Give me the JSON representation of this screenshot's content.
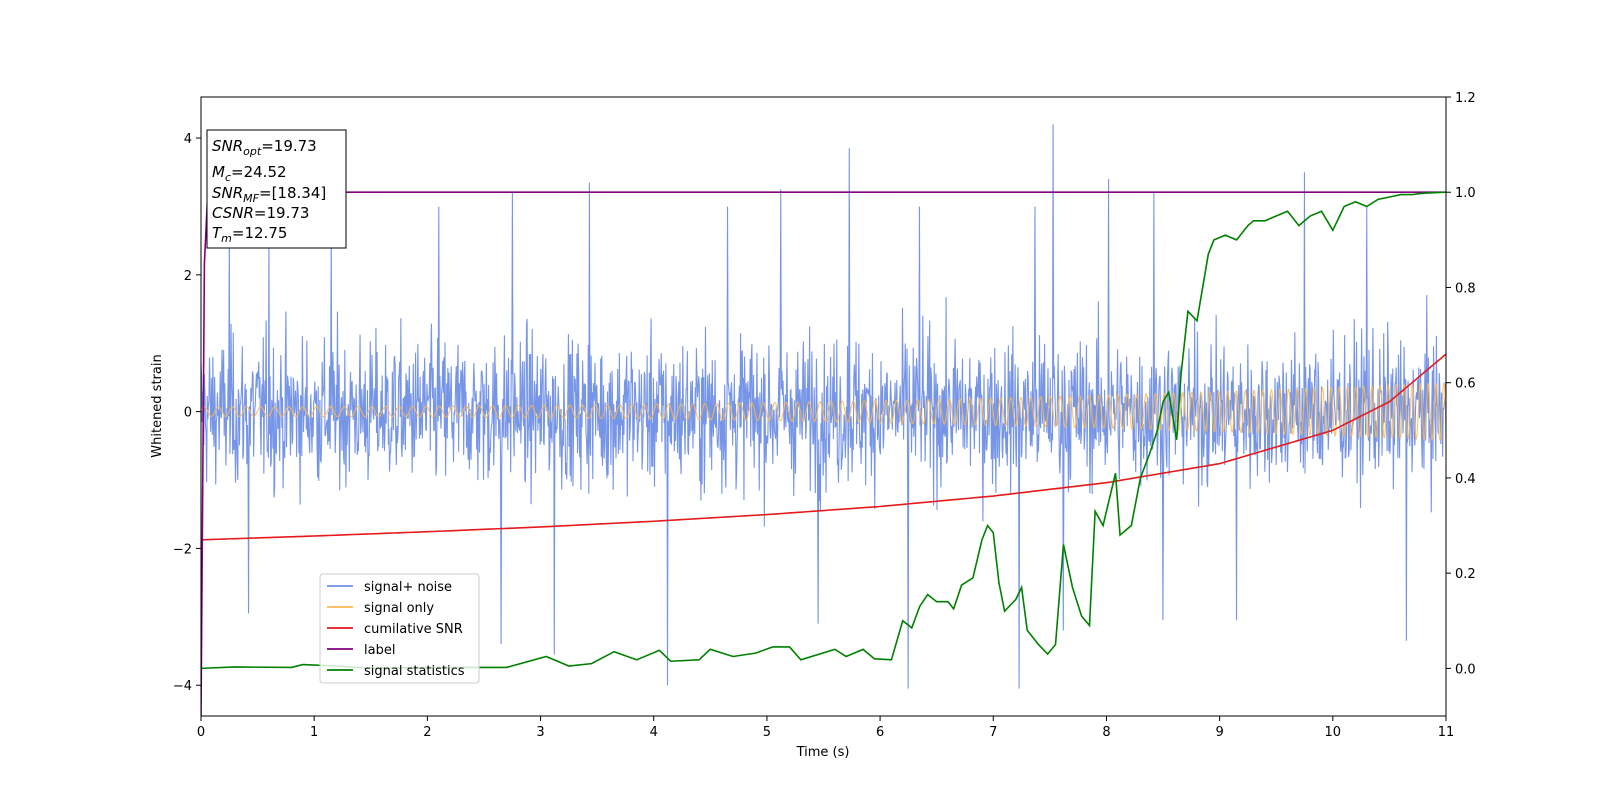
{
  "chart_data": {
    "type": "line",
    "xlabel": "Time (s)",
    "ylabel": "Whitened strain",
    "xlim": [
      0,
      11
    ],
    "ylim_left": [
      -4.45,
      4.6
    ],
    "ylim_right": [
      -0.1,
      1.2
    ],
    "x_ticks": [
      0,
      1,
      2,
      3,
      4,
      5,
      6,
      7,
      8,
      9,
      10,
      11
    ],
    "y_left_ticks": [
      -4,
      -2,
      0,
      2,
      4
    ],
    "y_right_ticks": [
      "0.0",
      "0.2",
      "0.4",
      "0.6",
      "0.8",
      "1.0",
      "1.2"
    ],
    "legend_placement": "lower-left",
    "grid": false,
    "info_box": [
      {
        "base": "SNR",
        "sub": "opt",
        "value": "=19.73"
      },
      {
        "base": "M",
        "sub": "c",
        "value": "=24.52"
      },
      {
        "base": "SNR",
        "sub": "MF",
        "value": "=[18.34]"
      },
      {
        "base": "CSNR",
        "sub": "",
        "value": "=19.73"
      },
      {
        "base": "T",
        "sub": "m",
        "value": "=12.75"
      }
    ],
    "series": [
      {
        "name": "signal+ noise",
        "axis": "left",
        "color": "#6f8fe6",
        "description_of_values": "noise, approx ±1.8 with spikes up to 4.2 and down to -4.05",
        "spikes": [
          [
            0.25,
            2.7
          ],
          [
            0.6,
            2.6
          ],
          [
            1.15,
            2.6
          ],
          [
            2.1,
            3.0
          ],
          [
            2.75,
            3.2
          ],
          [
            3.43,
            3.35
          ],
          [
            4.65,
            3.0
          ],
          [
            5.12,
            3.25
          ],
          [
            5.73,
            3.85
          ],
          [
            6.35,
            3.0
          ],
          [
            7.37,
            3.0
          ],
          [
            7.53,
            4.2
          ],
          [
            8.02,
            3.4
          ],
          [
            8.42,
            3.2
          ],
          [
            9.75,
            3.5
          ],
          [
            10.3,
            3.0
          ],
          [
            0.42,
            -2.95
          ],
          [
            2.65,
            -3.4
          ],
          [
            3.12,
            -3.55
          ],
          [
            4.12,
            -4.0
          ],
          [
            5.45,
            -3.1
          ],
          [
            6.25,
            -4.05
          ],
          [
            7.23,
            -4.05
          ],
          [
            7.62,
            -3.2
          ],
          [
            8.5,
            -3.05
          ],
          [
            9.15,
            -3.05
          ],
          [
            10.65,
            -3.35
          ]
        ]
      },
      {
        "name": "signal only",
        "axis": "left",
        "color": "#ffb84d",
        "description_of_values": "chirp oscillation, amplitude growing from 0.07 to 0.42"
      },
      {
        "name": "cumilative SNR",
        "axis": "right",
        "color": "#e41a1c",
        "points": [
          [
            0,
            0.27
          ],
          [
            1,
            0.278
          ],
          [
            2,
            0.287
          ],
          [
            3,
            0.297
          ],
          [
            4,
            0.309
          ],
          [
            5,
            0.323
          ],
          [
            6,
            0.34
          ],
          [
            7,
            0.362
          ],
          [
            8,
            0.39
          ],
          [
            9,
            0.43
          ],
          [
            10,
            0.5
          ],
          [
            10.5,
            0.56
          ],
          [
            11,
            0.66
          ]
        ]
      },
      {
        "name": "label",
        "axis": "right",
        "color": "#800080",
        "points": [
          [
            0,
            -0.1
          ],
          [
            0.03,
            0.85
          ],
          [
            0.06,
            1.0
          ],
          [
            11,
            1.0
          ]
        ]
      },
      {
        "name": "signal statistics",
        "axis": "right",
        "color": "#008000",
        "points": [
          [
            0,
            0.0
          ],
          [
            0.3,
            0.003
          ],
          [
            0.8,
            0.002
          ],
          [
            0.9,
            0.008
          ],
          [
            1.2,
            0.005
          ],
          [
            1.5,
            0.0
          ],
          [
            2,
            0.002
          ],
          [
            2.7,
            0.002
          ],
          [
            3.05,
            0.025
          ],
          [
            3.25,
            0.005
          ],
          [
            3.45,
            0.01
          ],
          [
            3.65,
            0.035
          ],
          [
            3.85,
            0.018
          ],
          [
            4.05,
            0.038
          ],
          [
            4.15,
            0.015
          ],
          [
            4.4,
            0.018
          ],
          [
            4.5,
            0.04
          ],
          [
            4.7,
            0.025
          ],
          [
            4.9,
            0.032
          ],
          [
            5.05,
            0.045
          ],
          [
            5.2,
            0.045
          ],
          [
            5.3,
            0.018
          ],
          [
            5.6,
            0.04
          ],
          [
            5.7,
            0.025
          ],
          [
            5.85,
            0.04
          ],
          [
            5.95,
            0.02
          ],
          [
            6.1,
            0.018
          ],
          [
            6.2,
            0.1
          ],
          [
            6.28,
            0.085
          ],
          [
            6.35,
            0.13
          ],
          [
            6.42,
            0.155
          ],
          [
            6.5,
            0.14
          ],
          [
            6.6,
            0.14
          ],
          [
            6.65,
            0.125
          ],
          [
            6.72,
            0.175
          ],
          [
            6.82,
            0.19
          ],
          [
            6.9,
            0.27
          ],
          [
            6.95,
            0.3
          ],
          [
            7.0,
            0.285
          ],
          [
            7.05,
            0.18
          ],
          [
            7.1,
            0.12
          ],
          [
            7.2,
            0.145
          ],
          [
            7.25,
            0.17
          ],
          [
            7.3,
            0.08
          ],
          [
            7.4,
            0.05
          ],
          [
            7.48,
            0.03
          ],
          [
            7.55,
            0.05
          ],
          [
            7.62,
            0.26
          ],
          [
            7.7,
            0.17
          ],
          [
            7.78,
            0.11
          ],
          [
            7.85,
            0.09
          ],
          [
            7.9,
            0.33
          ],
          [
            7.97,
            0.3
          ],
          [
            8.02,
            0.35
          ],
          [
            8.08,
            0.41
          ],
          [
            8.12,
            0.28
          ],
          [
            8.22,
            0.3
          ],
          [
            8.3,
            0.4
          ],
          [
            8.38,
            0.45
          ],
          [
            8.45,
            0.5
          ],
          [
            8.5,
            0.56
          ],
          [
            8.55,
            0.58
          ],
          [
            8.62,
            0.48
          ],
          [
            8.66,
            0.62
          ],
          [
            8.72,
            0.75
          ],
          [
            8.8,
            0.73
          ],
          [
            8.9,
            0.87
          ],
          [
            8.95,
            0.9
          ],
          [
            9.05,
            0.91
          ],
          [
            9.15,
            0.9
          ],
          [
            9.25,
            0.93
          ],
          [
            9.3,
            0.94
          ],
          [
            9.4,
            0.94
          ],
          [
            9.5,
            0.95
          ],
          [
            9.6,
            0.96
          ],
          [
            9.7,
            0.93
          ],
          [
            9.8,
            0.95
          ],
          [
            9.9,
            0.96
          ],
          [
            10.0,
            0.92
          ],
          [
            10.1,
            0.97
          ],
          [
            10.2,
            0.98
          ],
          [
            10.3,
            0.97
          ],
          [
            10.4,
            0.985
          ],
          [
            10.5,
            0.99
          ],
          [
            10.6,
            0.995
          ],
          [
            10.7,
            0.995
          ],
          [
            10.8,
            0.998
          ],
          [
            11,
            1.0
          ]
        ]
      }
    ]
  }
}
